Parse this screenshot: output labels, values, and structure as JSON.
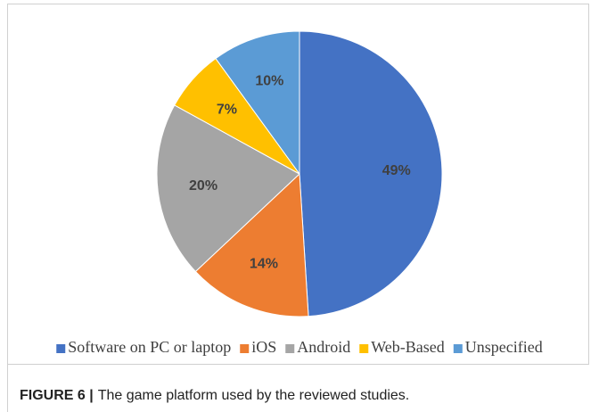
{
  "chart_data": {
    "type": "pie",
    "categories": [
      "Software on PC or laptop",
      "iOS",
      "Android",
      "Web-Based",
      "Unspecified"
    ],
    "values": [
      49,
      14,
      20,
      7,
      10
    ],
    "value_labels": [
      "49%",
      "14%",
      "20%",
      "7%",
      "10%"
    ],
    "colors": [
      "#4472c4",
      "#ed7d31",
      "#a5a5a5",
      "#ffc000",
      "#5b9bd5"
    ],
    "legend": "bottom"
  },
  "caption": {
    "label": "FIGURE 6 |",
    "text": "The game platform used by the reviewed studies."
  }
}
